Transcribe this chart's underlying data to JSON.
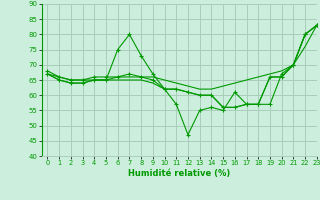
{
  "title": "",
  "xlabel": "Humidité relative (%)",
  "ylabel": "",
  "xlim": [
    -0.5,
    23
  ],
  "ylim": [
    40,
    90
  ],
  "yticks": [
    40,
    45,
    50,
    55,
    60,
    65,
    70,
    75,
    80,
    85,
    90
  ],
  "xticks": [
    0,
    1,
    2,
    3,
    4,
    5,
    6,
    7,
    8,
    9,
    10,
    11,
    12,
    13,
    14,
    15,
    16,
    17,
    18,
    19,
    20,
    21,
    22,
    23
  ],
  "background_color": "#cceedd",
  "grid_color": "#aaccbb",
  "line_color": "#009900",
  "line1_x": [
    0,
    1,
    2,
    3,
    4,
    5,
    6,
    7,
    8,
    9,
    10,
    11,
    12,
    13,
    14,
    15,
    16,
    17,
    18,
    19,
    20,
    21,
    22,
    23
  ],
  "line1_y": [
    68,
    66,
    65,
    65,
    66,
    66,
    66,
    67,
    66,
    65,
    62,
    62,
    61,
    60,
    60,
    56,
    56,
    57,
    57,
    66,
    66,
    70,
    80,
    83
  ],
  "line2_x": [
    0,
    1,
    2,
    3,
    4,
    5,
    6,
    7,
    8,
    9,
    10,
    11,
    12,
    13,
    14,
    15,
    16,
    17,
    18,
    19,
    20,
    21,
    22,
    23
  ],
  "line2_y": [
    67,
    65,
    64,
    64,
    65,
    65,
    75,
    80,
    73,
    67,
    62,
    57,
    47,
    55,
    56,
    55,
    61,
    57,
    57,
    57,
    67,
    70,
    80,
    83
  ],
  "line3_x": [
    0,
    1,
    2,
    3,
    4,
    5,
    6,
    7,
    8,
    9,
    10,
    11,
    12,
    13,
    14,
    15,
    16,
    17,
    18,
    19,
    20,
    21,
    22,
    23
  ],
  "line3_y": [
    67,
    65,
    64,
    64,
    65,
    65,
    65,
    65,
    65,
    64,
    62,
    62,
    61,
    60,
    60,
    56,
    56,
    57,
    57,
    66,
    66,
    70,
    80,
    83
  ],
  "line4_x": [
    0,
    1,
    2,
    3,
    4,
    5,
    6,
    7,
    8,
    9,
    10,
    11,
    12,
    13,
    14,
    15,
    16,
    17,
    18,
    19,
    20,
    21,
    22,
    23
  ],
  "line4_y": [
    67,
    66,
    65,
    65,
    65,
    65,
    66,
    66,
    66,
    66,
    65,
    64,
    63,
    62,
    62,
    63,
    64,
    65,
    66,
    67,
    68,
    70,
    76,
    83
  ]
}
